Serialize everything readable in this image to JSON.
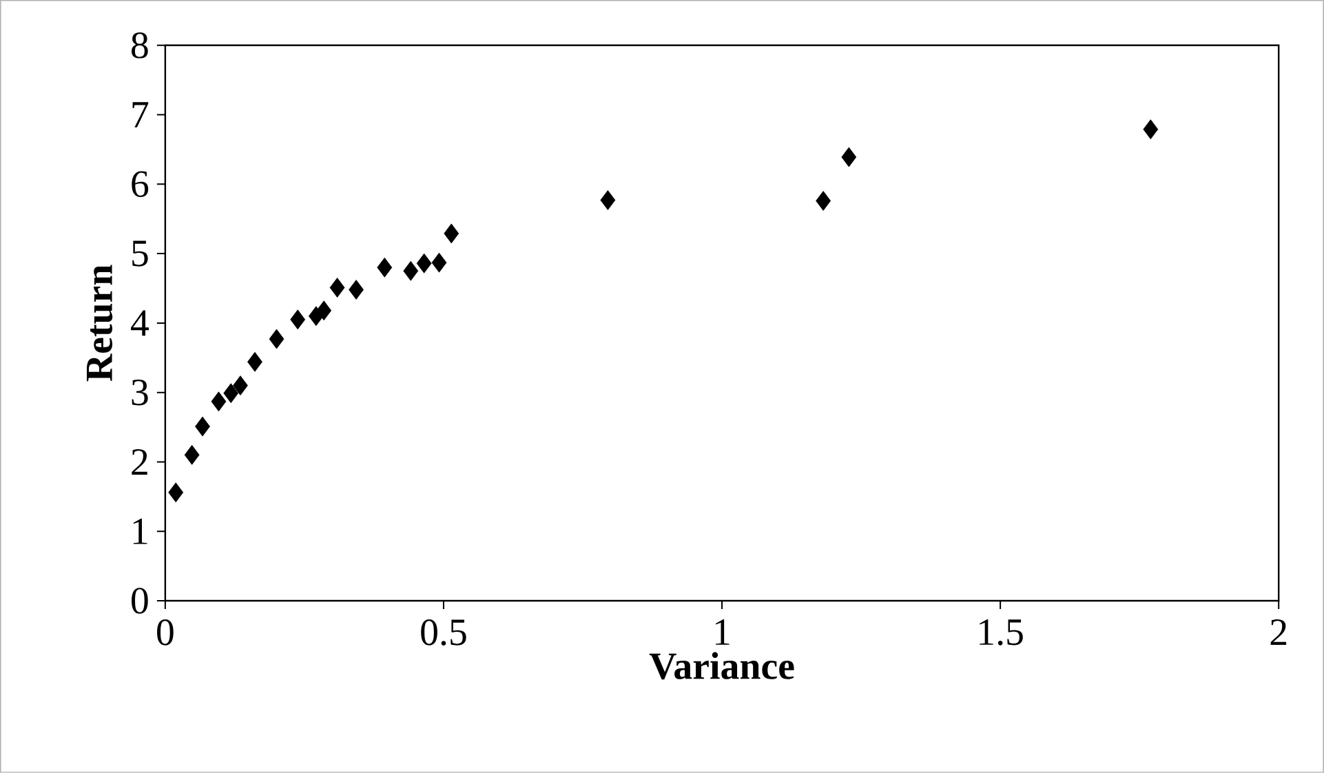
{
  "chart_data": {
    "type": "scatter",
    "xlabel": "Variance",
    "ylabel": "Return",
    "marker": "diamond",
    "color": "#000000",
    "x": [
      0.019,
      0.048,
      0.067,
      0.096,
      0.118,
      0.135,
      0.161,
      0.2,
      0.238,
      0.271,
      0.285,
      0.309,
      0.343,
      0.394,
      0.441,
      0.465,
      0.492,
      0.514,
      0.795,
      1.182,
      1.228,
      1.77
    ],
    "values": [
      1.56,
      2.1,
      2.51,
      2.87,
      2.99,
      3.1,
      3.44,
      3.77,
      4.05,
      4.1,
      4.18,
      4.51,
      4.48,
      4.8,
      4.75,
      4.86,
      4.87,
      5.29,
      5.77,
      5.76,
      6.39,
      6.79
    ],
    "xlim": [
      0,
      2
    ],
    "ylim": [
      0,
      8
    ],
    "xticks": [
      0,
      0.5,
      1,
      1.5,
      2
    ],
    "yticks": [
      0,
      1,
      2,
      3,
      4,
      5,
      6,
      7,
      8
    ]
  }
}
